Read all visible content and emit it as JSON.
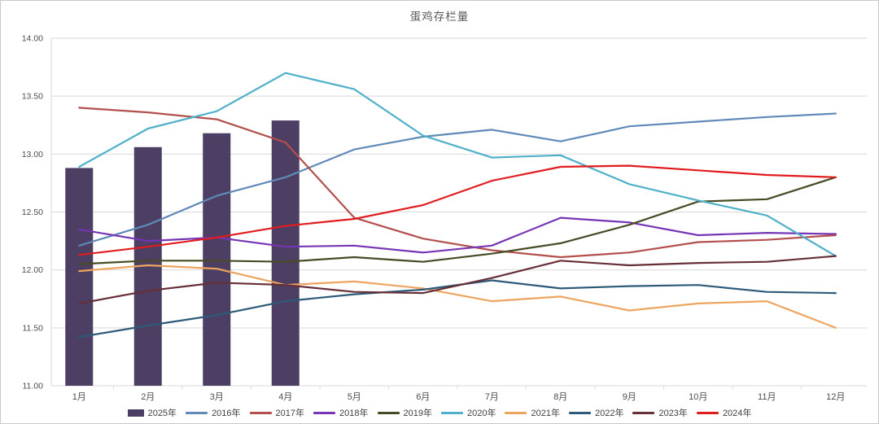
{
  "title": "蛋鸡存栏量",
  "colors": {
    "background": "#ffffff",
    "border": "#c9c9c9",
    "grid": "#d9d9d9",
    "axis": "#d9d9d9",
    "title_text": "#595959",
    "tick_text": "#4d4d4d",
    "legend_text": "#404040"
  },
  "chart_data": {
    "type": "combo",
    "title": "蛋鸡存栏量",
    "categories": [
      "1月",
      "2月",
      "3月",
      "4月",
      "5月",
      "6月",
      "7月",
      "8月",
      "9月",
      "10月",
      "11月",
      "12月"
    ],
    "y_axis": {
      "min": 11.0,
      "max": 14.0,
      "step": 0.5,
      "tick_labels": [
        "14.00",
        "13.50",
        "13.00",
        "12.50",
        "12.00",
        "11.50",
        "11.00"
      ]
    },
    "grid": "horizontal",
    "legend_position": "bottom",
    "series": [
      {
        "name": "2025年",
        "type": "bar",
        "color": "#4d3f63",
        "values": [
          12.88,
          13.06,
          13.18,
          13.29,
          null,
          null,
          null,
          null,
          null,
          null,
          null,
          null
        ]
      },
      {
        "name": "2016年",
        "type": "line",
        "color": "#5f8ab8",
        "values": [
          12.21,
          12.39,
          12.64,
          12.8,
          13.04,
          13.15,
          13.21,
          13.11,
          13.24,
          13.28,
          13.32,
          13.35
        ]
      },
      {
        "name": "2017年",
        "type": "line",
        "color": "#b3504e",
        "values": [
          13.4,
          13.36,
          13.3,
          13.1,
          12.45,
          12.27,
          12.17,
          12.11,
          12.15,
          12.24,
          12.26,
          12.3
        ]
      },
      {
        "name": "2018年",
        "type": "line",
        "color": "#7635b5",
        "values": [
          12.35,
          12.25,
          12.28,
          12.2,
          12.21,
          12.15,
          12.21,
          12.45,
          12.41,
          12.3,
          12.32,
          12.31
        ]
      },
      {
        "name": "2019年",
        "type": "line",
        "color": "#474b24",
        "values": [
          12.05,
          12.08,
          12.08,
          12.07,
          12.11,
          12.07,
          12.14,
          12.23,
          12.39,
          12.59,
          12.61,
          12.8
        ]
      },
      {
        "name": "2020年",
        "type": "line",
        "color": "#4fb0c9",
        "values": [
          12.89,
          13.22,
          13.37,
          13.7,
          13.56,
          13.16,
          12.97,
          12.99,
          12.74,
          12.6,
          12.47,
          12.12
        ]
      },
      {
        "name": "2021年",
        "type": "line",
        "color": "#eda45e",
        "values": [
          11.99,
          12.04,
          12.01,
          11.87,
          11.9,
          11.84,
          11.73,
          11.77,
          11.65,
          11.71,
          11.73,
          11.5
        ]
      },
      {
        "name": "2022年",
        "type": "line",
        "color": "#2c5a78",
        "values": [
          11.42,
          11.52,
          11.61,
          11.73,
          11.79,
          11.83,
          11.91,
          11.84,
          11.86,
          11.87,
          11.81,
          11.8
        ]
      },
      {
        "name": "2023年",
        "type": "line",
        "color": "#662e36",
        "values": [
          11.71,
          11.82,
          11.89,
          11.87,
          11.81,
          11.8,
          11.93,
          12.08,
          12.04,
          12.06,
          12.07,
          12.12
        ]
      },
      {
        "name": "2024年",
        "type": "line",
        "color": "#e11b1e",
        "values": [
          12.13,
          12.2,
          12.28,
          12.38,
          12.44,
          12.56,
          12.77,
          12.89,
          12.9,
          12.86,
          12.82,
          12.8
        ]
      }
    ]
  }
}
